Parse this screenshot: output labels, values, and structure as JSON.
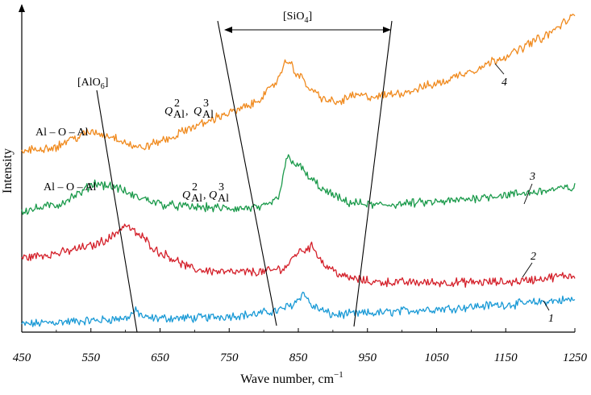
{
  "chart_data": {
    "type": "line",
    "title": "",
    "xlabel": "Wave number, cm",
    "xlabel_sup": "−1",
    "ylabel": "Intensity",
    "xlim": [
      450,
      1250
    ],
    "x_ticks": [
      450,
      550,
      650,
      750,
      850,
      950,
      1050,
      1150,
      1250
    ],
    "x_tick_labels": [
      "450",
      "550",
      "650",
      "750",
      "850",
      "950",
      "1050",
      "1150",
      "1250"
    ],
    "y_tick_labels": false,
    "grid": false,
    "legend": "none",
    "series": [
      {
        "name": "1",
        "color": "#1a9ad6",
        "x": [
          450,
          500,
          550,
          600,
          615,
          630,
          700,
          780,
          820,
          840,
          858,
          870,
          900,
          950,
          1050,
          1150,
          1250
        ],
        "y": [
          0.7,
          1.5,
          2.0,
          2.8,
          5.2,
          2.8,
          2.9,
          4.0,
          5.4,
          7.3,
          11.3,
          6.9,
          4.0,
          4.5,
          6.0,
          7.5,
          9.2
        ]
      },
      {
        "name": "2",
        "color": "#d4202a",
        "x": [
          450,
          500,
          550,
          575,
          600,
          620,
          650,
          700,
          750,
          800,
          830,
          850,
          870,
          890,
          920,
          960,
          1050,
          1150,
          1250
        ],
        "y": [
          23.5,
          25.0,
          27.5,
          30.0,
          34.6,
          31.2,
          25.2,
          19.5,
          18.5,
          18.7,
          20.0,
          25.5,
          27.3,
          20.6,
          16.7,
          15.2,
          15.0,
          15.2,
          17.5
        ]
      },
      {
        "name": "3",
        "color": "#1b9a4b",
        "x": [
          450,
          500,
          530,
          555,
          580,
          620,
          660,
          700,
          760,
          800,
          820,
          835,
          850,
          870,
          890,
          920,
          960,
          1050,
          1150,
          1250
        ],
        "y": [
          39.5,
          41.5,
          45.0,
          49.0,
          48.0,
          44.0,
          41.5,
          40.8,
          40.3,
          40.7,
          43.5,
          58.0,
          55.0,
          50.0,
          46.0,
          42.5,
          41.5,
          42.5,
          45.0,
          47.5
        ]
      },
      {
        "name": "4",
        "color": "#f08a1e",
        "x": [
          450,
          500,
          520,
          550,
          580,
          620,
          660,
          700,
          750,
          780,
          810,
          835,
          850,
          870,
          890,
          905,
          930,
          960,
          1000,
          1050,
          1100,
          1150,
          1200,
          1250
        ],
        "y": [
          60.0,
          61.5,
          64.0,
          66.5,
          65.0,
          61.0,
          64.0,
          68.5,
          73.0,
          75.5,
          81.0,
          91.0,
          86.0,
          80.5,
          77.5,
          76.5,
          79.0,
          78.5,
          80.0,
          83.0,
          87.5,
          92.5,
          98.5,
          106.0
        ]
      }
    ],
    "curve_labels": [
      "1",
      "2",
      "3",
      "4"
    ],
    "annotations": {
      "aloh": {
        "text": "[AlO",
        "sub": "6",
        "close": "]"
      },
      "sio4": {
        "text": "[SiO",
        "sub": "4",
        "close": "]"
      },
      "al_o_al_upper": "Al – O – Al",
      "al_o_al_lower": "Al – O – Al",
      "q_upper": {
        "q": "Q",
        "sup1": "2",
        "sub": "Al",
        "sep": ",",
        "sup2": "3"
      },
      "q_lower": {
        "q": "Q",
        "sup1": "2",
        "sub": "Al",
        "sep": ",",
        "sup2": "3"
      }
    }
  }
}
